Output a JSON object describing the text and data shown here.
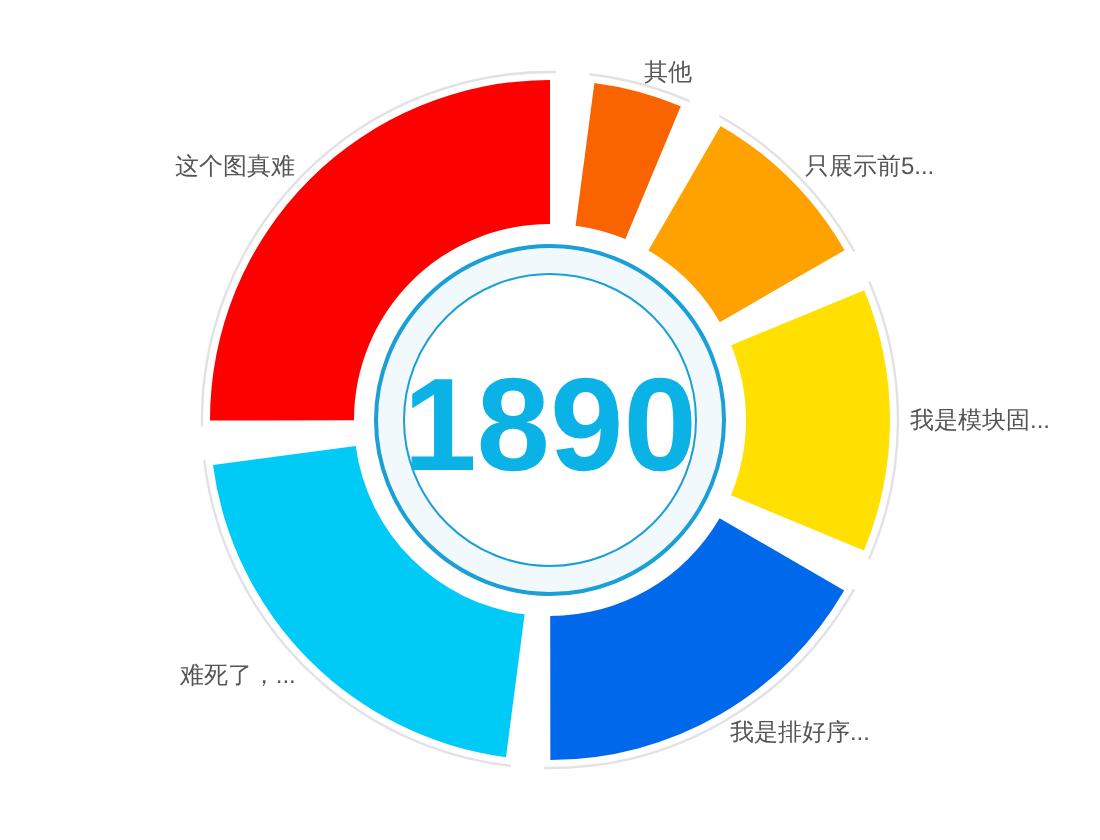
{
  "chart_data": {
    "type": "donut",
    "categories": [
      "其他",
      "只展示前5...",
      "我是模块固...",
      "我是排好序...",
      "难死了，...",
      "这个图真难"
    ],
    "values": [
      4.8,
      9.5,
      14.3,
      19.0,
      23.8,
      28.6
    ],
    "colors": [
      "#fa6400",
      "#ffa200",
      "#ffe000",
      "#0068ea",
      "#00cbf7",
      "#fd0000"
    ],
    "annotations": [
      "1890"
    ]
  }
}
